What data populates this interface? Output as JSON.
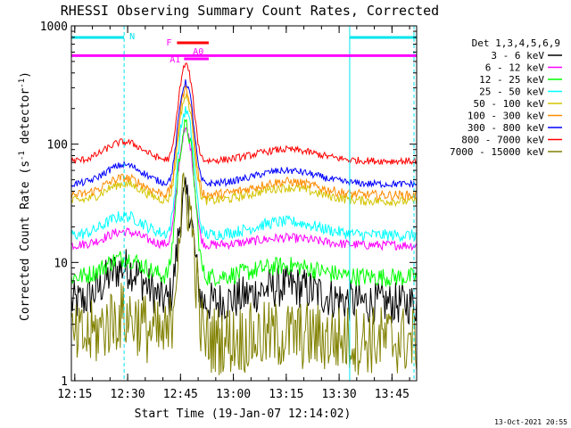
{
  "chart_data": {
    "type": "line",
    "title": "RHESSI Observing Summary Count Rates, Corrected",
    "xlabel": "Start Time (19-Jan-07 12:14:02)",
    "ylabel": "Corrected Count Rate (s⁻¹ detector⁻¹)",
    "ylabel_parts": {
      "main": "Corrected Count Rate (s",
      "exp1": "-1",
      "mid": " detector",
      "exp2": "-1",
      "end": ")"
    },
    "yscale": "log",
    "xlim": [
      "12:14:02",
      "13:52"
    ],
    "ylim": [
      1,
      1000
    ],
    "x_ticks": [
      "12:15",
      "12:30",
      "12:45",
      "13:00",
      "13:15",
      "13:30",
      "13:45"
    ],
    "y_ticks": [
      "1",
      "10",
      "100",
      "1000"
    ],
    "legend_title": "Det 1,3,4,5,6,9",
    "legend_position": "right",
    "timestamp": "13-Oct-2021 20:55",
    "annotations": {
      "night_label": "N",
      "night_intervals": [
        [
          "12:14:02",
          "12:29"
        ],
        [
          "13:33",
          "13:52"
        ]
      ],
      "flare_label": "F",
      "flare_interval": [
        "12:44",
        "12:53"
      ],
      "atten_labels": [
        "A1",
        "A0"
      ],
      "atten_interval": [
        "12:46",
        "12:53"
      ],
      "saa_bar_level": 560
    },
    "series": [
      {
        "name": "3 - 6 keV",
        "color": "#000000",
        "base": 4.5,
        "peak": 35,
        "bump1": 2.0,
        "bump2": 1.4,
        "noise": 0.18
      },
      {
        "name": "6 - 12 keV",
        "color": "#ff00ff",
        "base": 14,
        "peak": 130,
        "bump1": 1.3,
        "bump2": 1.15,
        "noise": 0.04
      },
      {
        "name": "12 - 25 keV",
        "color": "#00ff00",
        "base": 7.5,
        "peak": 140,
        "bump1": 1.45,
        "bump2": 1.25,
        "noise": 0.08
      },
      {
        "name": "25 - 50 keV",
        "color": "#00ffff",
        "base": 17,
        "peak": 190,
        "bump1": 1.45,
        "bump2": 1.3,
        "noise": 0.05
      },
      {
        "name": "50 - 100 keV",
        "color": "#d4c400",
        "base": 33,
        "peak": 250,
        "bump1": 1.4,
        "bump2": 1.3,
        "noise": 0.04
      },
      {
        "name": "100 - 300 keV",
        "color": "#ff8c00",
        "base": 37,
        "peak": 290,
        "bump1": 1.4,
        "bump2": 1.3,
        "noise": 0.04
      },
      {
        "name": "300 - 800 keV",
        "color": "#0000ff",
        "base": 46,
        "peak": 330,
        "bump1": 1.45,
        "bump2": 1.3,
        "noise": 0.03
      },
      {
        "name": "800 - 7000 keV",
        "color": "#ff0000",
        "base": 72,
        "peak": 470,
        "bump1": 1.45,
        "bump2": 1.25,
        "noise": 0.03
      },
      {
        "name": "7000 - 15000 keV",
        "color": "#808000",
        "base": 2.2,
        "peak": 35,
        "bump1": 1.6,
        "bump2": 1.1,
        "noise": 0.3
      }
    ],
    "colors": {
      "night": "#00e5ee",
      "flare": "#ff00ff",
      "saa": "#ff00ff",
      "axis": "#000000"
    }
  }
}
